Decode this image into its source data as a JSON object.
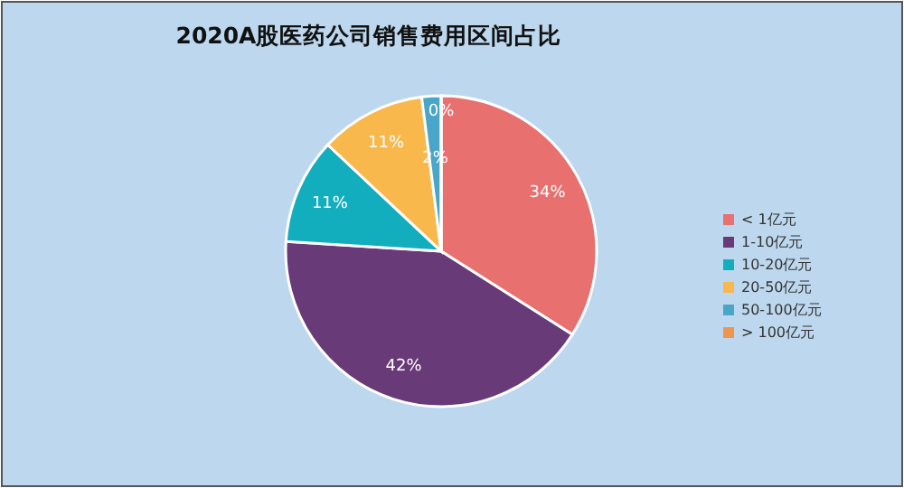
{
  "chart_data": {
    "type": "pie",
    "title": "2020A股医药公司销售费用区间占比",
    "categories": [
      "< 1亿元",
      "1-10亿元",
      "10-20亿元",
      "20-50亿元",
      "50-100亿元",
      "> 100亿元"
    ],
    "values": [
      34,
      42,
      11,
      11,
      2,
      0
    ],
    "value_labels": [
      "34%",
      "42%",
      "11%",
      "11%",
      "2%",
      "0%"
    ],
    "colors": [
      "#e8706e",
      "#683a78",
      "#12aebe",
      "#f9b84c",
      "#4aa6c8",
      "#f0964c"
    ],
    "legend": "right"
  }
}
